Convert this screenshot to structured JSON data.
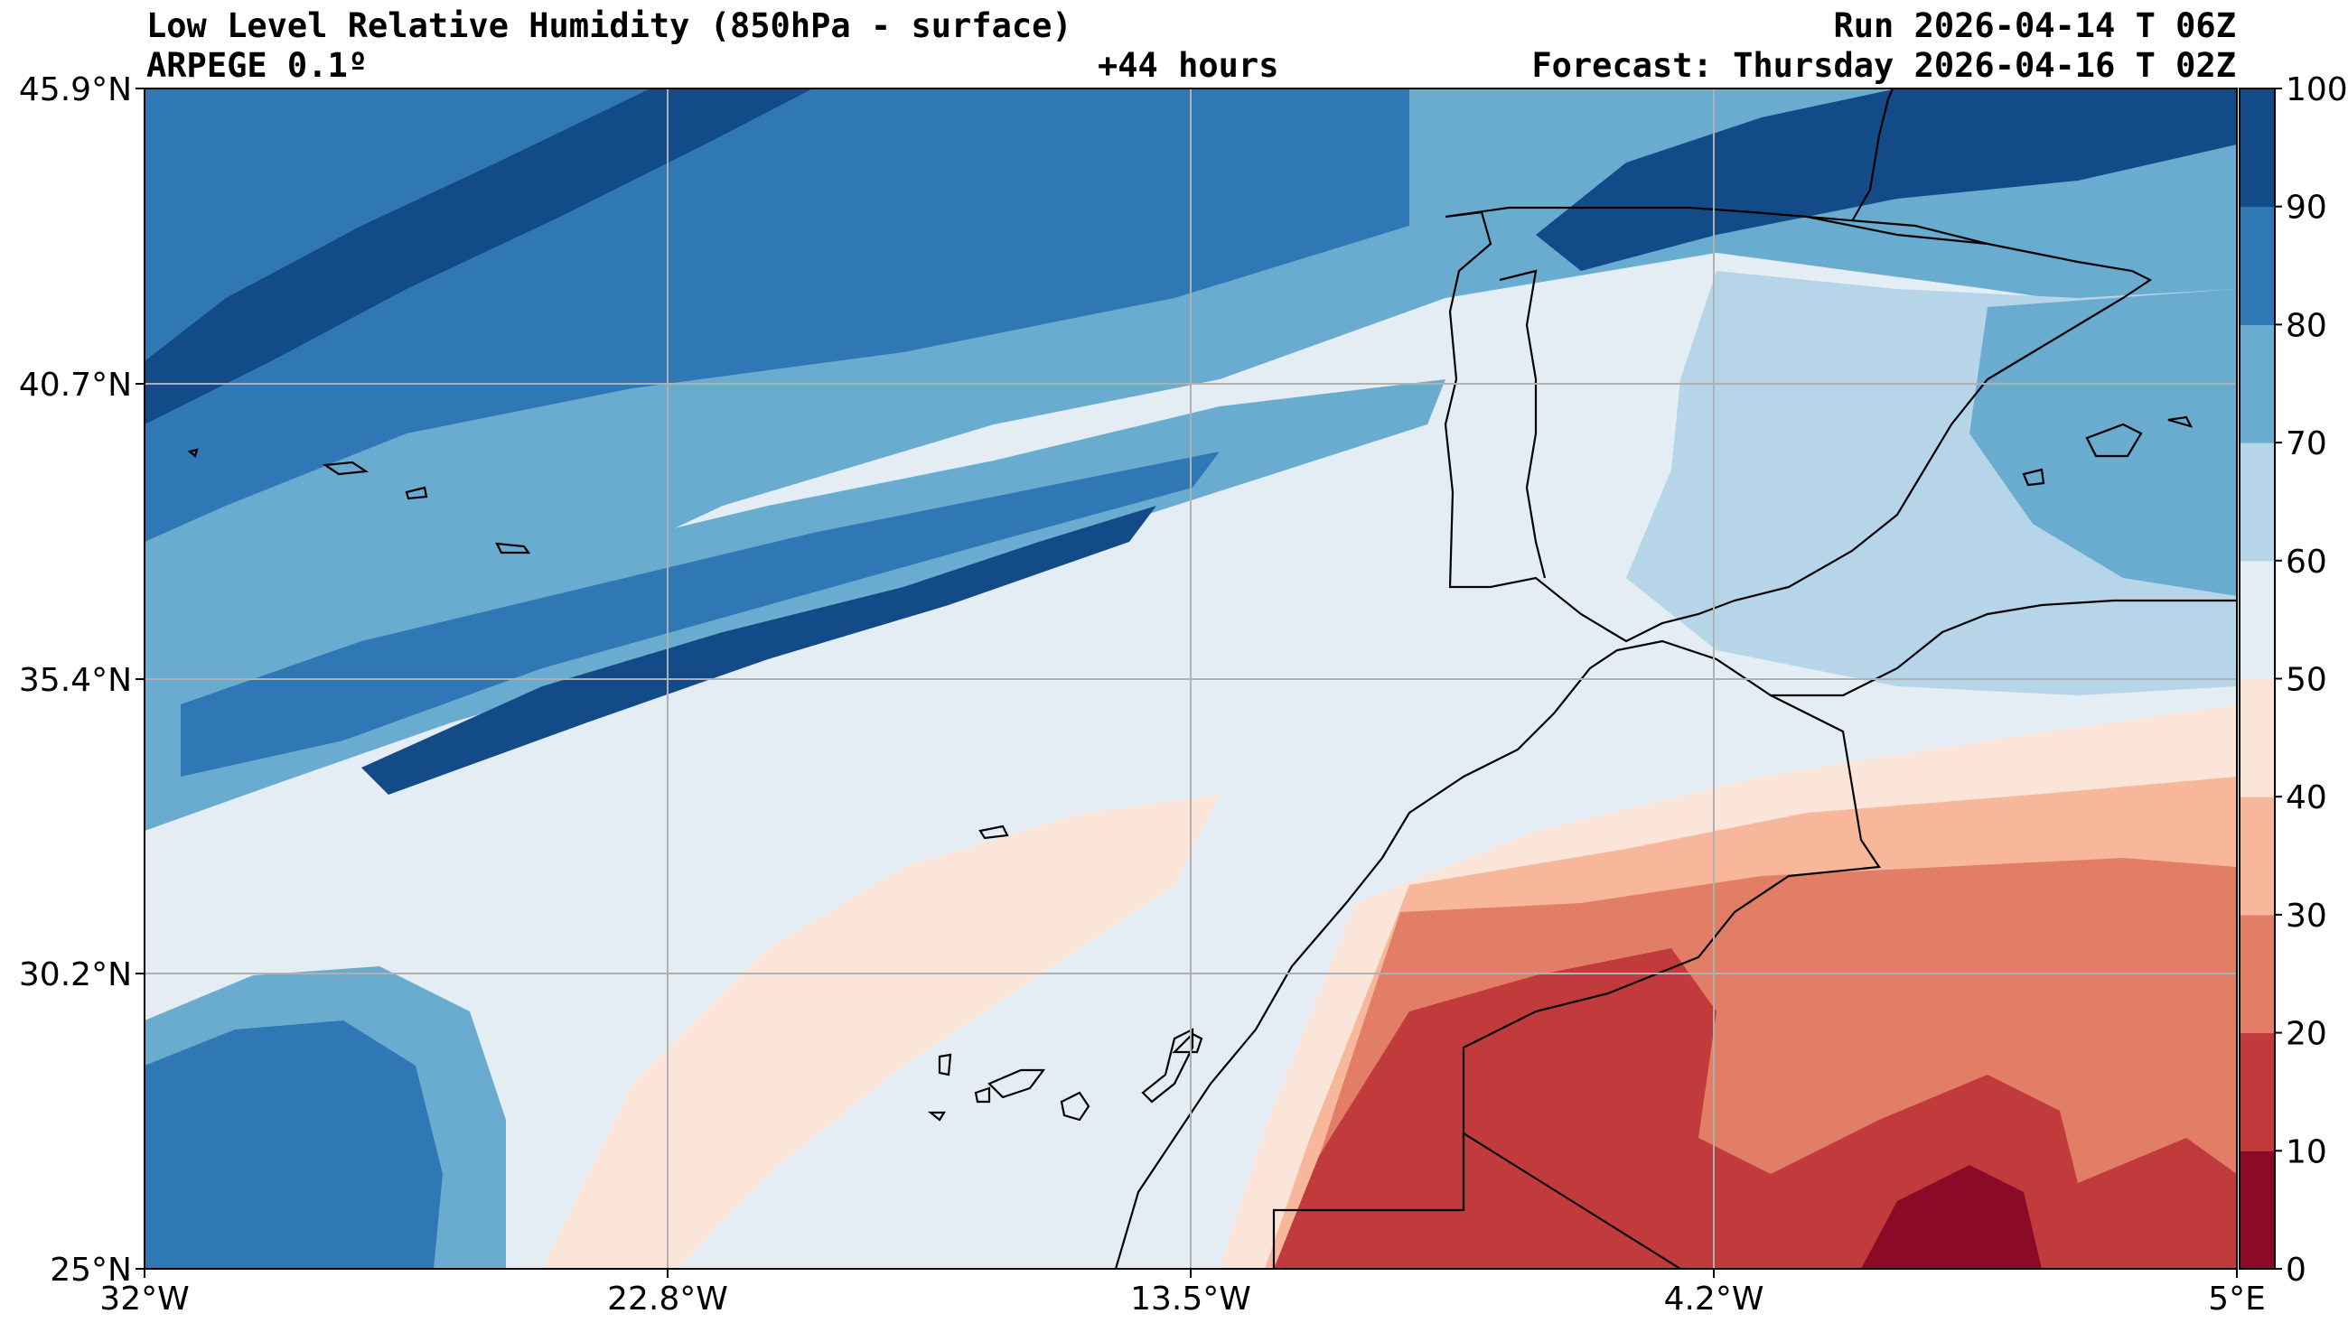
{
  "header": {
    "title": "Low Level Relative Humidity (850hPa - surface)",
    "model": "ARPEGE 0.1º",
    "lead_time": "+44 hours",
    "run": "Run 2026-04-14 T 06Z",
    "forecast": "Forecast: Thursday 2026-04-16 T 02Z"
  },
  "map": {
    "lon_labels": [
      "32°W",
      "22.8°W",
      "13.5°W",
      "4.2°W",
      "5°E"
    ],
    "lat_labels": [
      "45.9°N",
      "40.7°N",
      "35.4°N",
      "30.2°N",
      "25°N"
    ],
    "grid": true
  },
  "colorbar": {
    "ticks": [
      "0",
      "10",
      "20",
      "30",
      "40",
      "50",
      "60",
      "70",
      "80",
      "90",
      "100"
    ],
    "colors": [
      "#8b0a26",
      "#c13a3c",
      "#e27e65",
      "#f8b79a",
      "#fbe4d8",
      "#e4ecf4",
      "#b7d5e8",
      "#6aacd0",
      "#3078b5",
      "#134b88"
    ]
  }
}
